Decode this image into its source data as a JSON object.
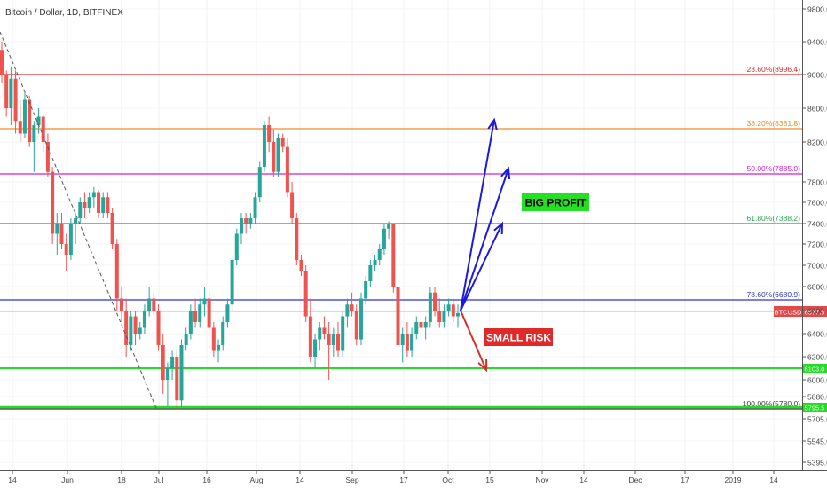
{
  "header": {
    "title": "Bitcoin / Dollar, 1D, BITFINEX"
  },
  "chart_data": {
    "type": "candlestick",
    "symbol": "BTCUSD",
    "last_price": "6577.9",
    "y_ticks": [
      "9800.0",
      "9400.0",
      "9000.0",
      "8600.0",
      "8200.0",
      "7800.0",
      "7600.0",
      "7400.0",
      "7200.0",
      "7000.0",
      "6800.0",
      "6600.0",
      "6400.0",
      "6200.0",
      "6000.0",
      "5880.0",
      "5705.0",
      "5545.0",
      "5395.0"
    ],
    "x_ticks": [
      "14",
      "Jun",
      "18",
      "Jul",
      "16",
      "Aug",
      "14",
      "Sep",
      "17",
      "Oct",
      "15",
      "Nov",
      "14",
      "Dec",
      "17",
      "2019",
      "14"
    ],
    "fib_levels": [
      {
        "label": "23.60%(8996.4)",
        "value": 8996.4,
        "color": "#e02a2a"
      },
      {
        "label": "38.20%(8381.8)",
        "value": 8381.8,
        "color": "#f08a24"
      },
      {
        "label": "50.00%(7885.0)",
        "value": 7885.0,
        "color": "#d020d0"
      },
      {
        "label": "61.80%(7388.2)",
        "value": 7388.2,
        "color": "#2aa052"
      },
      {
        "label": "78.60%(6680.9)",
        "value": 6680.9,
        "color": "#2a35c8"
      },
      {
        "label": "100.00%(5780.0)",
        "value": 5780.0,
        "color": "#333333"
      }
    ],
    "support_line": {
      "value": 6103.0,
      "label": "6103.0",
      "color": "#22dd22"
    },
    "support_line_low": {
      "value": 5795.5,
      "label": "5795.5",
      "color": "#22dd22"
    },
    "annotations": [
      {
        "text": "BIG PROFIT",
        "bg": "#22e022",
        "fg": "#000000"
      },
      {
        "text": "SMALL RISK",
        "bg": "#e02a2a",
        "fg": "#ffffff"
      }
    ],
    "series": [
      {
        "name": "BTCUSD",
        "ohlc_daily": [
          [
            9300,
            9400,
            8900,
            9000
          ],
          [
            9000,
            9050,
            8500,
            8600
          ],
          [
            8600,
            9100,
            8400,
            8950
          ],
          [
            8950,
            9050,
            8300,
            8450
          ],
          [
            8450,
            8700,
            8200,
            8300
          ],
          [
            8300,
            8800,
            8250,
            8700
          ],
          [
            8700,
            8750,
            8150,
            8200
          ],
          [
            8200,
            8450,
            7900,
            8400
          ],
          [
            8400,
            8600,
            8300,
            8500
          ],
          [
            8500,
            8520,
            8100,
            8200
          ],
          [
            8200,
            8300,
            7850,
            7900
          ],
          [
            7900,
            7950,
            7200,
            7300
          ],
          [
            7300,
            7500,
            7100,
            7400
          ],
          [
            7400,
            7500,
            7150,
            7200
          ],
          [
            7200,
            7300,
            6950,
            7100
          ],
          [
            7100,
            7450,
            7050,
            7400
          ],
          [
            7400,
            7500,
            7200,
            7450
          ],
          [
            7450,
            7650,
            7400,
            7600
          ],
          [
            7600,
            7700,
            7450,
            7550
          ],
          [
            7550,
            7700,
            7500,
            7650
          ],
          [
            7650,
            7750,
            7550,
            7700
          ],
          [
            7700,
            7720,
            7450,
            7500
          ],
          [
            7500,
            7700,
            7450,
            7650
          ],
          [
            7650,
            7700,
            7450,
            7500
          ],
          [
            7500,
            7550,
            7150,
            7200
          ],
          [
            7200,
            7250,
            6600,
            6700
          ],
          [
            6700,
            6800,
            6500,
            6600
          ],
          [
            6600,
            6700,
            6200,
            6300
          ],
          [
            6300,
            6600,
            6250,
            6550
          ],
          [
            6550,
            6600,
            6300,
            6400
          ],
          [
            6400,
            6500,
            6350,
            6450
          ],
          [
            6450,
            6650,
            6400,
            6600
          ],
          [
            6600,
            6800,
            6550,
            6700
          ],
          [
            6700,
            6750,
            6550,
            6600
          ],
          [
            6600,
            6650,
            6250,
            6300
          ],
          [
            6300,
            6400,
            5900,
            6000
          ],
          [
            6000,
            6150,
            5800,
            6100
          ],
          [
            6100,
            6250,
            6000,
            6200
          ],
          [
            6200,
            6250,
            5780,
            5850
          ],
          [
            5850,
            6350,
            5800,
            6300
          ],
          [
            6300,
            6450,
            6250,
            6400
          ],
          [
            6400,
            6650,
            6350,
            6600
          ],
          [
            6600,
            6700,
            6450,
            6500
          ],
          [
            6500,
            6700,
            6450,
            6650
          ],
          [
            6650,
            6800,
            6550,
            6700
          ],
          [
            6700,
            6750,
            6400,
            6450
          ],
          [
            6450,
            6500,
            6200,
            6250
          ],
          [
            6250,
            6350,
            6150,
            6300
          ],
          [
            6300,
            6550,
            6250,
            6500
          ],
          [
            6500,
            6700,
            6450,
            6650
          ],
          [
            6650,
            7100,
            6600,
            7050
          ],
          [
            7050,
            7350,
            7000,
            7300
          ],
          [
            7300,
            7500,
            7200,
            7450
          ],
          [
            7450,
            7500,
            7300,
            7400
          ],
          [
            7400,
            7500,
            7350,
            7450
          ],
          [
            7450,
            7700,
            7400,
            7650
          ],
          [
            7650,
            8000,
            7600,
            7950
          ],
          [
            7950,
            8450,
            7900,
            8400
          ],
          [
            8400,
            8500,
            8100,
            8200
          ],
          [
            8200,
            8350,
            7850,
            7900
          ],
          [
            7900,
            8300,
            7850,
            8250
          ],
          [
            8250,
            8300,
            8100,
            8150
          ],
          [
            8150,
            8250,
            7650,
            7700
          ],
          [
            7700,
            7800,
            7400,
            7450
          ],
          [
            7450,
            7500,
            7000,
            7050
          ],
          [
            7050,
            7100,
            6900,
            6950
          ],
          [
            6950,
            7000,
            6500,
            6550
          ],
          [
            6550,
            6700,
            6150,
            6200
          ],
          [
            6200,
            6400,
            6100,
            6350
          ],
          [
            6350,
            6500,
            6250,
            6450
          ],
          [
            6450,
            6550,
            6350,
            6400
          ],
          [
            6400,
            6500,
            6000,
            6300
          ],
          [
            6300,
            6450,
            6200,
            6400
          ],
          [
            6400,
            6500,
            6200,
            6250
          ],
          [
            6250,
            6600,
            6200,
            6550
          ],
          [
            6550,
            6700,
            6450,
            6650
          ],
          [
            6650,
            6750,
            6550,
            6600
          ],
          [
            6600,
            6650,
            6300,
            6350
          ],
          [
            6350,
            6750,
            6300,
            6700
          ],
          [
            6700,
            6900,
            6650,
            6850
          ],
          [
            6850,
            7050,
            6800,
            7000
          ],
          [
            7000,
            7100,
            6950,
            7050
          ],
          [
            7050,
            7200,
            7000,
            7150
          ],
          [
            7150,
            7400,
            7100,
            7350
          ],
          [
            7350,
            7420,
            7250,
            7400
          ],
          [
            7400,
            7400,
            6750,
            6800
          ],
          [
            6800,
            6850,
            6200,
            6300
          ],
          [
            6300,
            6450,
            6150,
            6400
          ],
          [
            6400,
            6500,
            6200,
            6250
          ],
          [
            6250,
            6450,
            6200,
            6400
          ],
          [
            6400,
            6550,
            6350,
            6500
          ],
          [
            6500,
            6600,
            6400,
            6450
          ],
          [
            6450,
            6550,
            6350,
            6500
          ],
          [
            6500,
            6800,
            6450,
            6750
          ],
          [
            6750,
            6800,
            6550,
            6600
          ],
          [
            6600,
            6700,
            6450,
            6500
          ],
          [
            6500,
            6650,
            6450,
            6600
          ],
          [
            6600,
            6700,
            6550,
            6650
          ],
          [
            6650,
            6700,
            6500,
            6550
          ],
          [
            6550,
            6650,
            6450,
            6577.9
          ]
        ]
      }
    ],
    "ylim": [
      5300,
      10000
    ]
  }
}
